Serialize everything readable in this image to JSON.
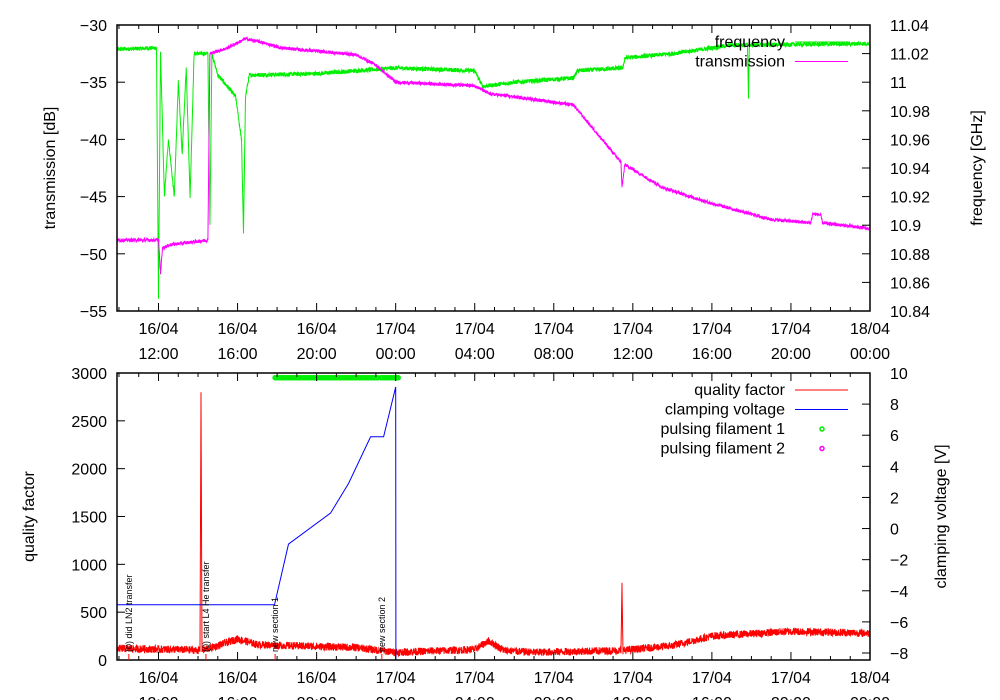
{
  "chart_data": [
    {
      "type": "line",
      "xlabel": "",
      "ylabel": "transmission [dB]",
      "y2label": "frequency [GHz]",
      "xlim_hours_from_16_04_00_00": [
        9.9,
        48
      ],
      "ylim": [
        -55,
        -30
      ],
      "y2lim": [
        10.84,
        11.04
      ],
      "yticks": [
        -30,
        -35,
        -40,
        -45,
        -50,
        -55
      ],
      "y2ticks": [
        11.04,
        11.02,
        11,
        10.98,
        10.96,
        10.94,
        10.92,
        10.9,
        10.88,
        10.86,
        10.84
      ],
      "y2tick_labels": [
        "11.04",
        "11.02",
        "11",
        "10.98",
        "10.96",
        "10.94",
        "10.92",
        "10.9",
        "10.88",
        "10.86",
        "10.84"
      ],
      "xticks": [
        {
          "h": 12,
          "l1": "16/04",
          "l2": "12:00"
        },
        {
          "h": 16,
          "l1": "16/04",
          "l2": "16:00"
        },
        {
          "h": 20,
          "l1": "16/04",
          "l2": "20:00"
        },
        {
          "h": 24,
          "l1": "17/04",
          "l2": "00:00"
        },
        {
          "h": 28,
          "l1": "17/04",
          "l2": "04:00"
        },
        {
          "h": 32,
          "l1": "17/04",
          "l2": "08:00"
        },
        {
          "h": 36,
          "l1": "17/04",
          "l2": "12:00"
        },
        {
          "h": 40,
          "l1": "17/04",
          "l2": "16:00"
        },
        {
          "h": 44,
          "l1": "17/04",
          "l2": "20:00"
        },
        {
          "h": 48,
          "l1": "18/04",
          "l2": "00:00"
        }
      ],
      "legend_position": "top-right",
      "series": [
        {
          "name": "frequency",
          "axis": "y2",
          "color": "#00ee00",
          "noise": 0.0015,
          "points": [
            [
              9.9,
              11.023
            ],
            [
              11.9,
              11.024
            ],
            [
              12.0,
              10.85
            ],
            [
              12.1,
              11.02
            ],
            [
              12.3,
              10.92
            ],
            [
              12.5,
              10.96
            ],
            [
              12.8,
              10.92
            ],
            [
              13.0,
              11.0
            ],
            [
              13.2,
              10.95
            ],
            [
              13.4,
              11.01
            ],
            [
              13.6,
              10.92
            ],
            [
              13.8,
              11.02
            ],
            [
              14.5,
              11.02
            ],
            [
              14.6,
              10.9
            ],
            [
              14.7,
              11.02
            ],
            [
              15.0,
              11.005
            ],
            [
              15.9,
              10.99
            ],
            [
              16.2,
              10.96
            ],
            [
              16.3,
              10.895
            ],
            [
              16.4,
              10.99
            ],
            [
              16.6,
              11.005
            ],
            [
              20,
              11.006
            ],
            [
              24,
              11.01
            ],
            [
              28,
              11.008
            ],
            [
              28.4,
              10.997
            ],
            [
              30,
              11.0
            ],
            [
              33,
              11.003
            ],
            [
              33.2,
              11.008
            ],
            [
              35.5,
              11.01
            ],
            [
              35.6,
              11.017
            ],
            [
              38,
              11.02
            ],
            [
              41,
              11.026
            ],
            [
              41.8,
              11.026
            ],
            [
              41.85,
              10.99
            ],
            [
              41.9,
              11.026
            ],
            [
              48,
              11.027
            ]
          ]
        },
        {
          "name": "transmission",
          "axis": "y",
          "color": "#ff00ff",
          "noise": 0.15,
          "points": [
            [
              9.9,
              -48.8
            ],
            [
              12.0,
              -48.8
            ],
            [
              12.1,
              -51.7
            ],
            [
              12.2,
              -49.5
            ],
            [
              12.6,
              -49.2
            ],
            [
              14.5,
              -48.8
            ],
            [
              14.6,
              -32.5
            ],
            [
              15.5,
              -32
            ],
            [
              16.4,
              -31.2
            ],
            [
              17.2,
              -31.5
            ],
            [
              18.2,
              -32
            ],
            [
              22.0,
              -32.6
            ],
            [
              23.0,
              -33.5
            ],
            [
              24.0,
              -35
            ],
            [
              28.0,
              -35.3
            ],
            [
              28.7,
              -36
            ],
            [
              31.0,
              -36.5
            ],
            [
              33.0,
              -37
            ],
            [
              34.2,
              -39.5
            ],
            [
              35.4,
              -42
            ],
            [
              35.45,
              -44.2
            ],
            [
              35.6,
              -42.2
            ],
            [
              37.5,
              -44.2
            ],
            [
              40,
              -45.6
            ],
            [
              43,
              -47
            ],
            [
              45,
              -47.3
            ],
            [
              45.1,
              -46.5
            ],
            [
              45.5,
              -46.6
            ],
            [
              45.6,
              -47.3
            ],
            [
              48,
              -47.8
            ]
          ]
        }
      ]
    },
    {
      "type": "line",
      "ylabel": "quality factor",
      "y2label": "clamping voltage [V]",
      "xlim_hours_from_16_04_00_00": [
        9.9,
        48
      ],
      "ylim": [
        0,
        3000
      ],
      "y2lim": [
        -8.45,
        10
      ],
      "yticks": [
        0,
        500,
        1000,
        1500,
        2000,
        2500,
        3000
      ],
      "y2ticks": [
        10,
        8,
        6,
        4,
        2,
        0,
        -2,
        -4,
        -6,
        -8
      ],
      "legend_position": "top-right",
      "series": [
        {
          "name": "quality factor",
          "axis": "y",
          "color": "#ff0000",
          "noise": 40,
          "points": [
            [
              9.9,
              120
            ],
            [
              13,
              110
            ],
            [
              14.1,
              100
            ],
            [
              14.15,
              2760
            ],
            [
              14.2,
              100
            ],
            [
              15,
              150
            ],
            [
              16,
              220
            ],
            [
              17,
              160
            ],
            [
              22,
              130
            ],
            [
              24,
              80
            ],
            [
              28,
              110
            ],
            [
              28.7,
              200
            ],
            [
              29.5,
              100
            ],
            [
              31,
              80
            ],
            [
              35.4,
              100
            ],
            [
              35.45,
              780
            ],
            [
              35.5,
              100
            ],
            [
              38,
              150
            ],
            [
              40,
              250
            ],
            [
              44,
              300
            ],
            [
              48,
              280
            ]
          ]
        },
        {
          "name": "clamping voltage",
          "axis": "y2",
          "color": "#0000ff",
          "noise": 0,
          "points": [
            [
              9.9,
              -4.9
            ],
            [
              17.87,
              -4.9
            ],
            [
              18.58,
              -1.0
            ],
            [
              20.71,
              1.0
            ],
            [
              21.62,
              2.9
            ],
            [
              22.73,
              5.9
            ],
            [
              23.39,
              5.9
            ],
            [
              24.0,
              9.1
            ],
            [
              24.01,
              -8.45
            ]
          ]
        },
        {
          "name": "pulsing filament 1",
          "axis": "y2",
          "color": "#00ee00",
          "marker": "point",
          "value": 9.7,
          "ranges": [
            [
              17.9,
              23.1
            ],
            [
              23.25,
              24.2
            ]
          ]
        },
        {
          "name": "pulsing filament 2",
          "axis": "y2",
          "color": "#ff00ff",
          "marker": "point",
          "value": null,
          "ranges": []
        }
      ],
      "annotations": [
        {
          "h": 10.5,
          "text": "(0) did LN2 transfer"
        },
        {
          "h": 14.4,
          "text": "(0) start L4 He transfer"
        },
        {
          "h": 17.9,
          "text": "new section 1"
        },
        {
          "h": 23.3,
          "text": "new section 2"
        }
      ]
    }
  ]
}
